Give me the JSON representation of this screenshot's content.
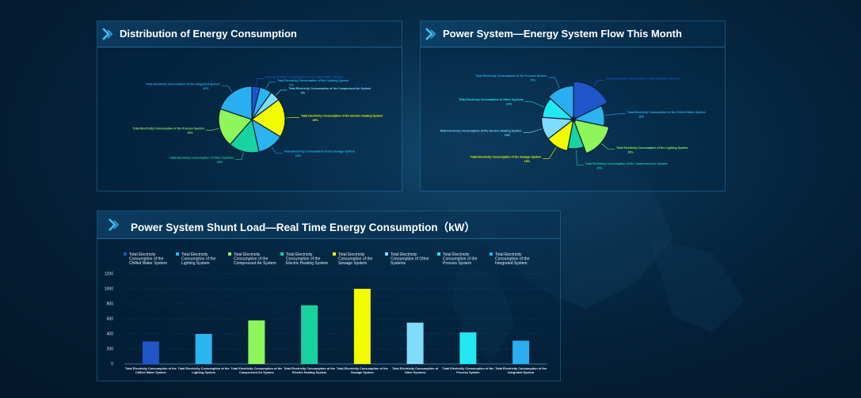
{
  "panels": {
    "distribution": {
      "title": "Distribution of Energy Consumption"
    },
    "flow": {
      "title": "Power System—Energy System Flow This Month"
    },
    "shunt": {
      "title": "Power System Shunt Load—Real Time Energy Consumption（kW）"
    }
  },
  "colors": {
    "chilled_water": "#1f55c9",
    "lighting": "#2bb4f0",
    "compressed_air": "#8ef55a",
    "electric_heating": "#18d2a0",
    "sewage": "#f2fb00",
    "other": "#7fdcff",
    "process": "#22e8f2",
    "integrated": "#2aaef2"
  },
  "chart_data": [
    {
      "type": "pie",
      "title": "Distribution of Energy Consumption",
      "slices": [
        {
          "name": "Total Electricity Consumption of the Chilled Water System",
          "label": "Total Electricity Consumption of the Chilled Water System",
          "value": 4,
          "percent_label": "",
          "color_key": "chilled_water"
        },
        {
          "name": "Total Electricity Consumption of the Lighting System",
          "label": "Total Electricity Consumption of the Lighting System",
          "value": 6,
          "percent_label": "6%",
          "color_key": "lighting"
        },
        {
          "name": "Total Electricity Consumption of the Compressed Air System",
          "label": "Total Electricity Consumption of the Compressed Air System",
          "value": 5,
          "percent_label": "5%",
          "color_key": "other"
        },
        {
          "name": "Total Electricity Consumption of the Electric Heating System",
          "label": "Total Electricity Consumption of the Electric Heating System",
          "value": 19,
          "percent_label": "19%",
          "color_key": "sewage"
        },
        {
          "name": "Total Electricity Consumption of the Sewage System",
          "label": "Total Electricity Consumption of the Sewage System",
          "value": 13,
          "percent_label": "13%",
          "color_key": "lighting"
        },
        {
          "name": "Total Electricity Consumption of Other Systems",
          "label": "Total Electricity Consumption of Other Systems",
          "value": 15,
          "percent_label": "15%",
          "color_key": "electric_heating"
        },
        {
          "name": "Total Electricity Consumption of the Process System",
          "label": "Total Electricity Consumption of the Process System",
          "value": 19,
          "percent_label": "19%",
          "color_key": "compressed_air"
        },
        {
          "name": "Total Electricity Consumption of the Integrated System",
          "label": "Total Electricity Consumption of the Integrated System",
          "value": 20,
          "percent_label": "20%",
          "color_key": "integrated"
        }
      ]
    },
    {
      "type": "pie",
      "title": "Power System—Energy System Flow This Month",
      "subtype": "rose",
      "slices": [
        {
          "name": "Total Electricity Consumption of the Integrated System",
          "label": "Total Electricity Consumption of the Integrated System",
          "value": 20,
          "percent_label": "",
          "color_key": "chilled_water"
        },
        {
          "name": "Total Electricity Consumption of the Chilled Water System",
          "label": "Total Electricity Consumption of the Chilled Water System",
          "value": 12,
          "percent_label": "12%",
          "color_key": "lighting"
        },
        {
          "name": "Total Electricity Consumption of the Lighting System",
          "label": "Total Electricity Consumption of the Lighting System",
          "value": 18,
          "percent_label": "18%",
          "color_key": "compressed_air"
        },
        {
          "name": "Total Electricity Consumption of the Compressed Air System",
          "label": "Total Electricity Consumption of the Compressed Air System",
          "value": 10,
          "percent_label": "10%",
          "color_key": "electric_heating"
        },
        {
          "name": "Total Electricity Consumption of the Sewage System",
          "label": "Total Electricity Consumption of the Sewage System",
          "value": 13,
          "percent_label": "13%",
          "color_key": "sewage"
        },
        {
          "name": "Total Electricity Consumption of the Electric Heating System",
          "label": "Total Electricity Consumption of the Electric Heating System",
          "value": 13,
          "percent_label": "13%",
          "color_key": "other"
        },
        {
          "name": "Total Electricity Consumption of Other Systems",
          "label": "Total Electricity Consumption of Other Systems",
          "value": 12,
          "percent_label": "12%",
          "color_key": "process"
        },
        {
          "name": "Total Electricity Consumption of the Process System",
          "label": "Total Electricity Consumption of the Process System",
          "value": 15,
          "percent_label": "15%",
          "color_key": "integrated"
        }
      ]
    },
    {
      "type": "bar",
      "title": "Power System Shunt Load—Real Time Energy Consumption（kW）",
      "ylim": [
        0,
        1200
      ],
      "yticks": [
        0,
        200,
        400,
        600,
        800,
        1000,
        1200
      ],
      "categories": [
        "Total Electricity Consumption of the Chilled Water System",
        "Total Electricity Consumption of the Lighting System",
        "Total Electricity Consumption of the Compressed Air System",
        "Total Electricity Consumption of the Electric Heating System",
        "Total Electricity Consumption of the Sewage System",
        "Total Electricity Consumption of Other Systems",
        "Total Electricity Consumption of the Process System",
        "Total Electricity Consumption of the Integrated System"
      ],
      "legend": [
        "Total Electricity Consumption of the Chilled Water System",
        "Total Electricity Consumption of the Lighting System",
        "Total Electricity Consumption of the Compressed Air System",
        "Total Electricity Consumption of the Electric Heating System",
        "Total Electricity Consumption of the Sewage System",
        "Total Electricity Consumption of Other Systems",
        "Total Electricity Consumption of the Process System",
        "Total Electricity Consumption of the Integrated System"
      ],
      "values": [
        300,
        400,
        580,
        780,
        1000,
        550,
        420,
        310
      ],
      "color_keys": [
        "chilled_water",
        "lighting",
        "compressed_air",
        "electric_heating",
        "sewage",
        "other",
        "process",
        "integrated"
      ],
      "legend_position": "top",
      "grid": true
    }
  ]
}
